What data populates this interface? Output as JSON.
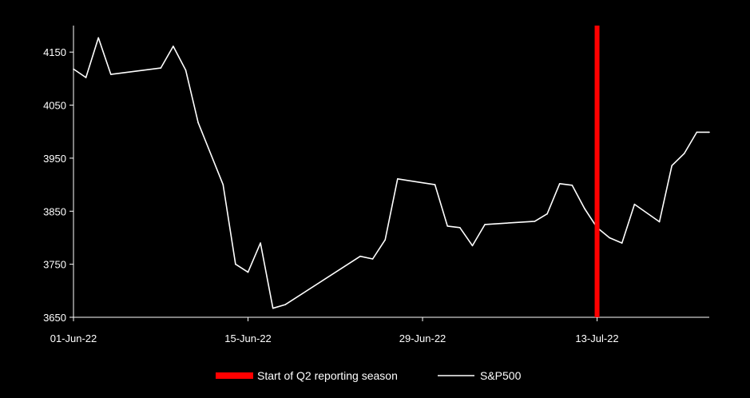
{
  "chart_data": {
    "type": "line",
    "title": "",
    "xlabel": "",
    "ylabel": "",
    "ylim": [
      3650,
      4200
    ],
    "yticks": [
      3650,
      3750,
      3850,
      3950,
      4050,
      4150
    ],
    "ytick_labels": [
      "3650",
      "3750",
      "3850",
      "3950",
      "4050",
      "4150"
    ],
    "xlim": [
      "2022-06-01",
      "2022-07-22"
    ],
    "xticks": [
      "2022-06-01",
      "2022-06-15",
      "2022-06-29",
      "2022-07-13"
    ],
    "xtick_labels": [
      "01-Jun-22",
      "15-Jun-22",
      "29-Jun-22",
      "13-Jul-22"
    ],
    "grid": false,
    "legend_position": "bottom",
    "series": [
      {
        "name": "S&P500",
        "color": "#ffffff",
        "points": [
          {
            "x": "2022-06-01",
            "y": 4118
          },
          {
            "x": "2022-06-02",
            "y": 4102
          },
          {
            "x": "2022-06-03",
            "y": 4177
          },
          {
            "x": "2022-06-04",
            "y": 4108
          },
          {
            "x": "2022-06-08",
            "y": 4120
          },
          {
            "x": "2022-06-09",
            "y": 4161
          },
          {
            "x": "2022-06-10",
            "y": 4116
          },
          {
            "x": "2022-06-11",
            "y": 4017
          },
          {
            "x": "2022-06-13",
            "y": 3900
          },
          {
            "x": "2022-06-14",
            "y": 3750
          },
          {
            "x": "2022-06-15",
            "y": 3735
          },
          {
            "x": "2022-06-16",
            "y": 3790
          },
          {
            "x": "2022-06-17",
            "y": 3667
          },
          {
            "x": "2022-06-18",
            "y": 3674
          },
          {
            "x": "2022-06-24",
            "y": 3765
          },
          {
            "x": "2022-06-25",
            "y": 3760
          },
          {
            "x": "2022-06-26",
            "y": 3796
          },
          {
            "x": "2022-06-27",
            "y": 3911
          },
          {
            "x": "2022-06-30",
            "y": 3900
          },
          {
            "x": "2022-07-01",
            "y": 3822
          },
          {
            "x": "2022-07-02",
            "y": 3819
          },
          {
            "x": "2022-07-03",
            "y": 3785
          },
          {
            "x": "2022-07-04",
            "y": 3825
          },
          {
            "x": "2022-07-08",
            "y": 3831
          },
          {
            "x": "2022-07-09",
            "y": 3845
          },
          {
            "x": "2022-07-10",
            "y": 3902
          },
          {
            "x": "2022-07-11",
            "y": 3899
          },
          {
            "x": "2022-07-12",
            "y": 3855
          },
          {
            "x": "2022-07-13",
            "y": 3819
          },
          {
            "x": "2022-07-14",
            "y": 3800
          },
          {
            "x": "2022-07-15",
            "y": 3790
          },
          {
            "x": "2022-07-16",
            "y": 3863
          },
          {
            "x": "2022-07-18",
            "y": 3830
          },
          {
            "x": "2022-07-19",
            "y": 3936
          },
          {
            "x": "2022-07-20",
            "y": 3959
          },
          {
            "x": "2022-07-21",
            "y": 3999
          },
          {
            "x": "2022-07-22",
            "y": 3999
          }
        ]
      }
    ],
    "annotations": [
      {
        "name": "Start of Q2 reporting season",
        "type": "vertical-line",
        "x": "2022-07-13",
        "color": "#ff0000"
      }
    ],
    "legend": [
      {
        "label": "Start of Q2 reporting season",
        "color": "#ff0000",
        "style": "thick-bar"
      },
      {
        "label": "S&P500",
        "color": "#ffffff",
        "style": "line"
      }
    ]
  }
}
